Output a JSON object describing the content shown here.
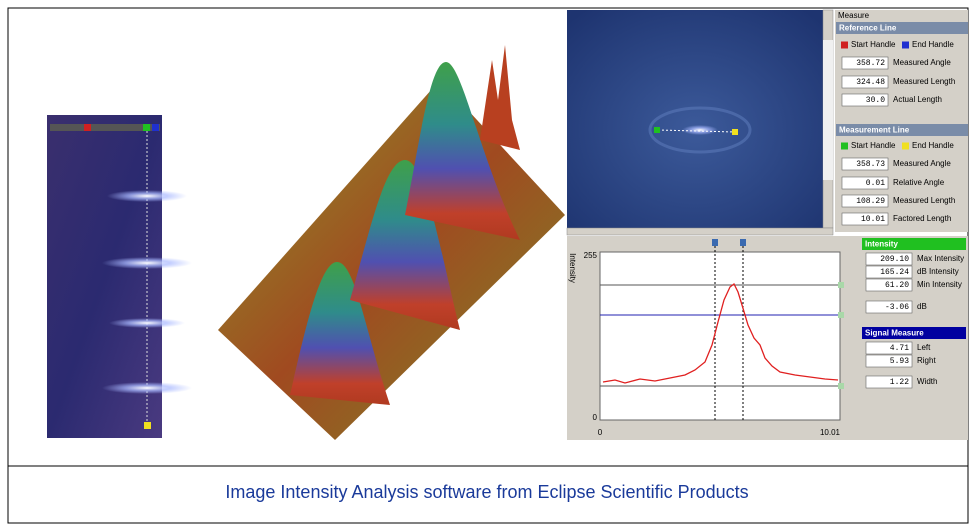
{
  "caption": "Image Intensity Analysis software from Eclipse Scientific Products",
  "measure_panel": {
    "title": "Measure",
    "reference_line": {
      "header": "Reference Line",
      "handles": [
        "Start Handle",
        "End Handle"
      ],
      "fields": [
        {
          "value": "358.72",
          "label": "Measured Angle"
        },
        {
          "value": "324.48",
          "label": "Measured Length"
        },
        {
          "value": "30.0",
          "label": "Actual Length"
        }
      ]
    },
    "measurement_line": {
      "header": "Measurement Line",
      "handles": [
        "Start Handle",
        "End Handle"
      ],
      "fields": [
        {
          "value": "358.73",
          "label": "Measured Angle"
        },
        {
          "value": "0.01",
          "label": "Relative Angle"
        },
        {
          "value": "108.29",
          "label": "Measured Length"
        },
        {
          "value": "10.01",
          "label": "Factored Length"
        }
      ]
    }
  },
  "intensity_panel": {
    "header": "Intensity",
    "fields": [
      {
        "value": "209.10",
        "label": "Max Intensity"
      },
      {
        "value": "165.24",
        "label": "dB Intensity"
      },
      {
        "value": "61.20",
        "label": "Min Intensity"
      },
      {
        "value": "-3.06",
        "label": "dB"
      }
    ]
  },
  "signal_panel": {
    "header": "Signal Measure",
    "fields": [
      {
        "value": "4.71",
        "label": "Left"
      },
      {
        "value": "5.93",
        "label": "Right"
      },
      {
        "value": "1.22",
        "label": "Width"
      }
    ]
  },
  "plot": {
    "y_label": "Intensity",
    "y_max": "255",
    "y_min": "0",
    "x_min": "0",
    "x_max": "10.01"
  }
}
